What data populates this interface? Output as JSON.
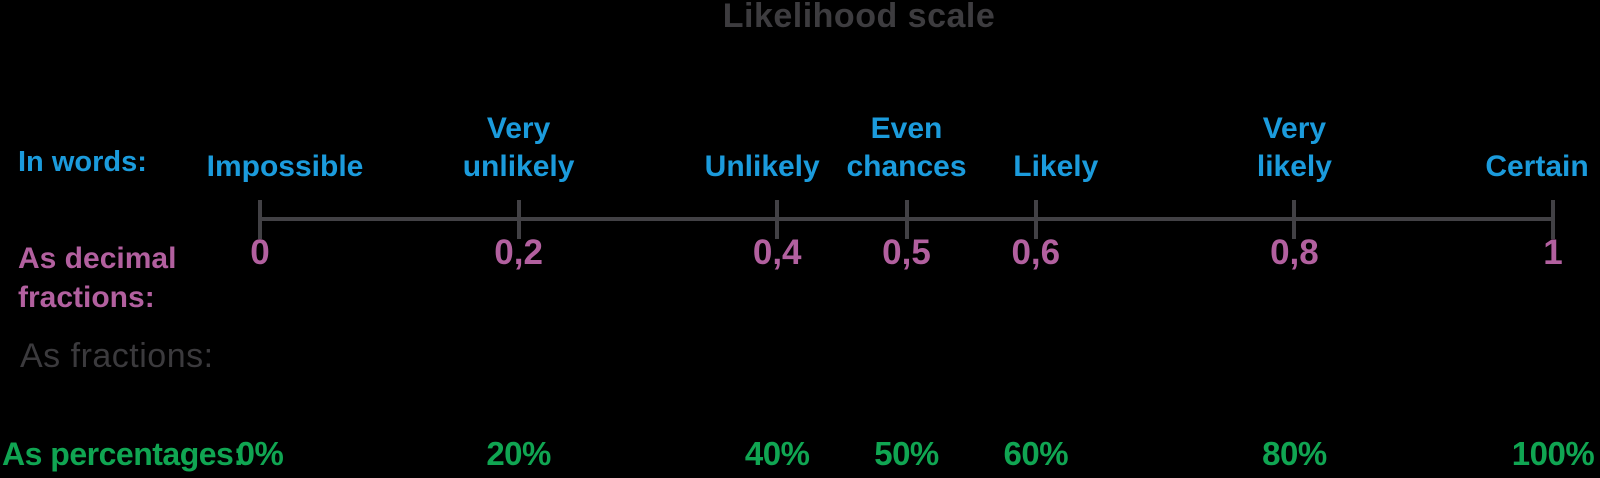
{
  "title": "Likelihood scale",
  "colors": {
    "background": "#000000",
    "title": "#3d3c3f",
    "words_blue": "#1b9bdc",
    "decimals_purple": "#b2609f",
    "fractions_gray": "#3b3a3d",
    "percentages_green": "#10a552",
    "axis_gray": "#424145"
  },
  "rows": {
    "words": {
      "label": "In words:"
    },
    "decimals": {
      "label": "As decimal fractions:",
      "label_lines": [
        "As decimal",
        "fractions:"
      ]
    },
    "fractions": {
      "label": "As fractions:"
    },
    "percentages": {
      "label": "As percentages:"
    }
  },
  "scale": {
    "points": [
      {
        "fraction": 0,
        "word": "Impossible",
        "word_lines": [
          "Impossible"
        ],
        "decimal": "0",
        "percent": "0%"
      },
      {
        "fraction": 0.2,
        "word": "Very unlikely",
        "word_lines": [
          "Very",
          "unlikely"
        ],
        "decimal": "0,2",
        "percent": "20%"
      },
      {
        "fraction": 0.4,
        "word": "Unlikely",
        "word_lines": [
          "Unlikely"
        ],
        "decimal": "0,4",
        "percent": "40%"
      },
      {
        "fraction": 0.5,
        "word": "Even chances",
        "word_lines": [
          "Even",
          "chances"
        ],
        "decimal": "0,5",
        "percent": "50%"
      },
      {
        "fraction": 0.6,
        "word": "Likely",
        "word_lines": [
          "Likely"
        ],
        "decimal": "0,6",
        "percent": "60%"
      },
      {
        "fraction": 0.8,
        "word": "Very likely",
        "word_lines": [
          "Very",
          "likely"
        ],
        "decimal": "0,8",
        "percent": "80%"
      },
      {
        "fraction": 1,
        "word": "Certain",
        "word_lines": [
          "Certain"
        ],
        "decimal": "1",
        "percent": "100%"
      }
    ]
  },
  "chart_data": {
    "type": "table",
    "title": "Likelihood scale",
    "categories": [
      "Impossible",
      "Very unlikely",
      "Unlikely",
      "Even chances",
      "Likely",
      "Very likely",
      "Certain"
    ],
    "series": [
      {
        "name": "As decimal fractions",
        "values": [
          0,
          0.2,
          0.4,
          0.5,
          0.6,
          0.8,
          1
        ]
      },
      {
        "name": "As percentages",
        "values": [
          "0%",
          "20%",
          "40%",
          "50%",
          "60%",
          "80%",
          "100%"
        ]
      }
    ],
    "xlim": [
      0,
      1
    ],
    "axis": "horizontal number line with ticks at 0, 0.2, 0.4, 0.5, 0.6, 0.8, 1"
  }
}
